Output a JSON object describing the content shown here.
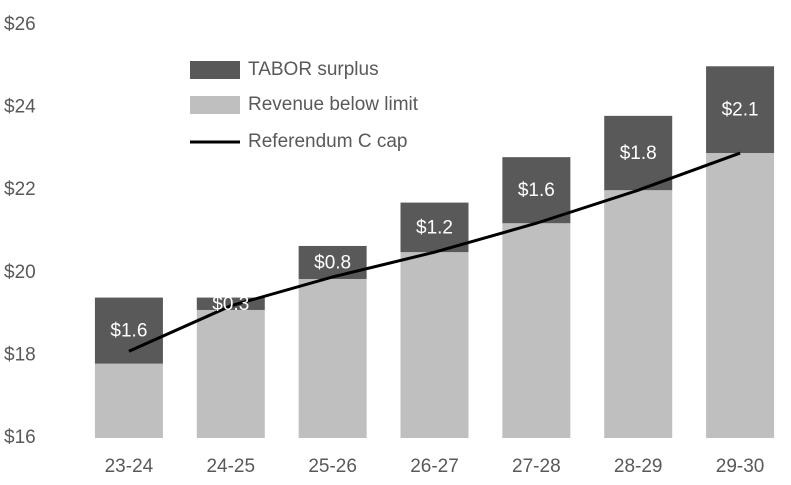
{
  "chart_data": {
    "type": "stacked_bar_line",
    "categories": [
      "23-24",
      "24-25",
      "25-26",
      "26-27",
      "27-28",
      "28-29",
      "29-30"
    ],
    "series": [
      {
        "name": "TABOR surplus",
        "color": "#595959",
        "values": [
          1.6,
          0.3,
          0.8,
          1.2,
          1.6,
          1.8,
          2.1
        ],
        "value_labels": [
          "$1.6",
          "$0.3",
          "$0.8",
          "$1.2",
          "$1.6",
          "$1.8",
          "$2.1"
        ]
      },
      {
        "name": "Revenue below limit",
        "color": "#bfbfbf",
        "values": [
          17.8,
          19.1,
          19.85,
          20.5,
          21.2,
          22.0,
          22.9
        ]
      },
      {
        "name": "Referendum C cap",
        "color": "#000000",
        "values": [
          18.1,
          19.2,
          19.9,
          20.5,
          21.2,
          22.0,
          22.9
        ]
      }
    ],
    "ylim": [
      16,
      26
    ],
    "yticks": [
      {
        "value": 16,
        "label": "$16"
      },
      {
        "value": 18,
        "label": "$18"
      },
      {
        "value": 20,
        "label": "$20"
      },
      {
        "value": 22,
        "label": "$22"
      },
      {
        "value": 24,
        "label": "$24"
      },
      {
        "value": 26,
        "label": "$26"
      }
    ]
  }
}
